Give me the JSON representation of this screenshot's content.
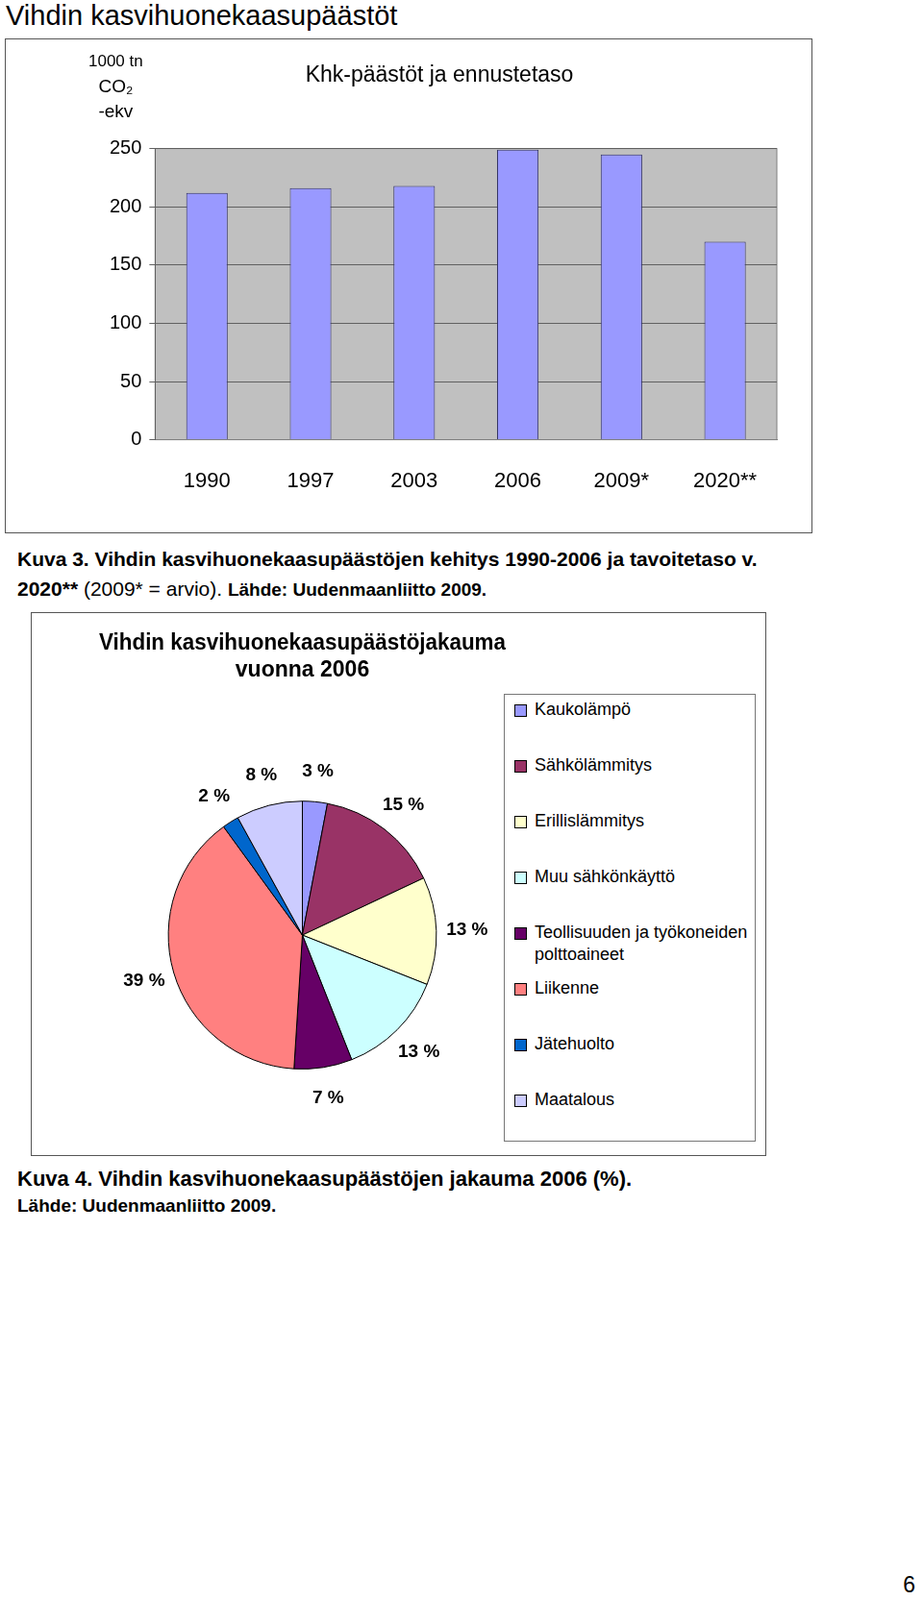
{
  "title": "Vihdin kasvihuonekaasupäästöt",
  "chart_data": [
    {
      "type": "bar",
      "title": "Khk-päästöt ja ennustetaso",
      "ylabel": [
        "1000 tn",
        "CO₂",
        "-ekv"
      ],
      "categories": [
        "1990",
        "1997",
        "2003",
        "2006",
        "2009*",
        "2020**"
      ],
      "values": [
        212,
        216,
        218,
        249,
        245,
        170
      ],
      "color": "#9999ff",
      "ylim": [
        0,
        250
      ],
      "yticks": [
        0,
        50,
        100,
        150,
        200,
        250
      ],
      "grid": true
    },
    {
      "type": "pie",
      "title": [
        "Vihdin kasvihuonekaasupäästöjakauma",
        "vuonna 2006"
      ],
      "categories": [
        "Kaukolämpö",
        "Sähkölämmitys",
        "Erillislämmitys",
        "Muu sähkönkäyttö",
        "Teollisuuden ja työkoneiden polttoaineet",
        "Liikenne",
        "Jätehuolto",
        "Maatalous"
      ],
      "values": [
        3,
        15,
        13,
        13,
        7,
        39,
        2,
        8
      ],
      "value_labels": [
        "3 %",
        "15 %",
        "13 %",
        "13 %",
        "7 %",
        "39 %",
        "2 %",
        "8 %"
      ],
      "colors": [
        "#9999ff",
        "#993366",
        "#ffffcc",
        "#ccffff",
        "#660066",
        "#ff8080",
        "#0066cc",
        "#ccccff"
      ],
      "legend": "right",
      "data_labels": true
    }
  ],
  "captions": [
    [
      "Kuva 3. Vihdin kasvihuonekaasupäästöjen kehitys 1990-2006 ja tavoitetaso v. 2020**",
      "(2009* = arvio).",
      "Lähde: Uudenmaanliitto 2009."
    ],
    [
      "Kuva 4. Vihdin kasvihuonekaasupäästöjen jakauma  2006 (%).",
      "Lähde: Uudenmaanliitto 2009."
    ]
  ],
  "page_number": "6"
}
